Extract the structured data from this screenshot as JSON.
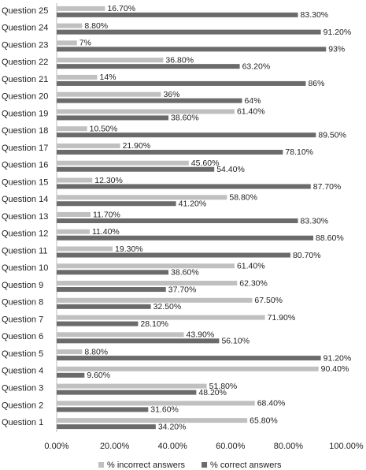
{
  "chart_data": {
    "type": "bar",
    "orientation": "horizontal",
    "categories": [
      "Question 1",
      "Question 2",
      "Question 3",
      "Question 4",
      "Question 5",
      "Question 6",
      "Question 7",
      "Question 8",
      "Question 9",
      "Question 10",
      "Question 11",
      "Question 12",
      "Question 13",
      "Question 14",
      "Question 15",
      "Question 16",
      "Question 17",
      "Question 18",
      "Question 19",
      "Question 20",
      "Question 21",
      "Question 22",
      "Question 23",
      "Question 24",
      "Question 25"
    ],
    "series": [
      {
        "name": "% incorrect answers",
        "color": "#c0c0c0",
        "values": [
          65.8,
          68.4,
          51.8,
          90.4,
          8.8,
          43.9,
          71.9,
          67.5,
          62.3,
          61.4,
          19.3,
          11.4,
          11.7,
          58.8,
          12.3,
          45.6,
          21.9,
          10.5,
          61.4,
          36,
          14,
          36.8,
          7,
          8.8,
          16.7
        ],
        "value_labels": [
          "65.80%",
          "68.40%",
          "51.80%",
          "90.40%",
          "8.80%",
          "43.90%",
          "71.90%",
          "67.50%",
          "62.30%",
          "61.40%",
          "19.30%",
          "11.40%",
          "11.70%",
          "58.80%",
          "12.30%",
          "45.60%",
          "21.90%",
          "10.50%",
          "61.40%",
          "36%",
          "14%",
          "36.80%",
          "7%",
          "8.80%",
          "16.70%"
        ]
      },
      {
        "name": "% correct answers",
        "color": "#6b6b6b",
        "values": [
          34.2,
          31.6,
          48.2,
          9.6,
          91.2,
          56.1,
          28.1,
          32.5,
          37.7,
          38.6,
          80.7,
          88.6,
          83.3,
          41.2,
          87.7,
          54.4,
          78.1,
          89.5,
          38.6,
          64,
          86,
          63.2,
          93,
          91.2,
          83.3
        ],
        "value_labels": [
          "34.20%",
          "31.60%",
          "48.20%",
          "9.60%",
          "91.20%",
          "56.10%",
          "28.10%",
          "32.50%",
          "37.70%",
          "38.60%",
          "80.70%",
          "88.60%",
          "83.30%",
          "41.20%",
          "87.70%",
          "54.40%",
          "78.10%",
          "89.50%",
          "38.60%",
          "64%",
          "86%",
          "63.20%",
          "93%",
          "91.20%",
          "83.30%"
        ]
      }
    ],
    "xlim": [
      0,
      100
    ],
    "xticks": [
      {
        "value": 0,
        "label": "0.00%"
      },
      {
        "value": 20,
        "label": "20.00%"
      },
      {
        "value": 40,
        "label": "40.00%"
      },
      {
        "value": 60,
        "label": "60.00%"
      },
      {
        "value": 80,
        "label": "80.00%"
      },
      {
        "value": 100,
        "label": "100.00%"
      }
    ],
    "legend": "bottom"
  }
}
